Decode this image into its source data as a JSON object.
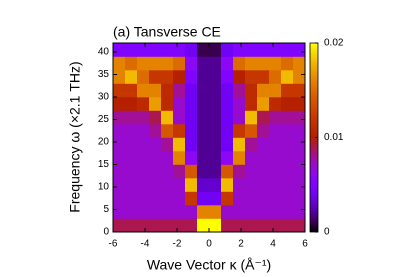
{
  "chart_data": {
    "type": "heatmap",
    "title": "(a)  Tansverse CE",
    "x_label": "Wave Vector κ (Å⁻¹)",
    "y_label": "Frequency ω (×2.1 THz)",
    "xbins": [
      -6,
      -5.25,
      -4.5,
      -3.75,
      -3,
      -2.25,
      -1.5,
      -0.75,
      0,
      0.75,
      1.5,
      2.25,
      3,
      3.75,
      4.5,
      5.25,
      6
    ],
    "ybins": [
      0,
      3,
      6,
      9,
      12,
      15,
      18,
      21,
      24,
      27,
      30,
      33,
      36,
      39,
      42
    ],
    "z": [
      [
        0.009,
        0.009,
        0.009,
        0.009,
        0.009,
        0.009,
        0.009,
        0.02,
        0.02,
        0.009,
        0.009,
        0.009,
        0.009,
        0.009,
        0.009,
        0.009
      ],
      [
        0.007,
        0.007,
        0.007,
        0.007,
        0.007,
        0.007,
        0.007,
        0.016,
        0.016,
        0.007,
        0.007,
        0.007,
        0.007,
        0.007,
        0.007,
        0.007
      ],
      [
        0.007,
        0.007,
        0.007,
        0.007,
        0.007,
        0.007,
        0.012,
        0.004,
        0.004,
        0.012,
        0.007,
        0.007,
        0.007,
        0.007,
        0.007,
        0.007
      ],
      [
        0.007,
        0.007,
        0.007,
        0.007,
        0.007,
        0.007,
        0.018,
        0.003,
        0.003,
        0.018,
        0.007,
        0.007,
        0.007,
        0.007,
        0.007,
        0.007
      ],
      [
        0.007,
        0.007,
        0.007,
        0.007,
        0.007,
        0.008,
        0.014,
        0.002,
        0.002,
        0.014,
        0.008,
        0.007,
        0.007,
        0.007,
        0.007,
        0.007
      ],
      [
        0.007,
        0.007,
        0.007,
        0.007,
        0.007,
        0.016,
        0.006,
        0.002,
        0.002,
        0.006,
        0.016,
        0.007,
        0.007,
        0.007,
        0.007,
        0.007
      ],
      [
        0.007,
        0.007,
        0.007,
        0.007,
        0.008,
        0.018,
        0.004,
        0.002,
        0.002,
        0.004,
        0.018,
        0.008,
        0.007,
        0.007,
        0.007,
        0.007
      ],
      [
        0.007,
        0.007,
        0.007,
        0.008,
        0.014,
        0.012,
        0.004,
        0.002,
        0.002,
        0.004,
        0.012,
        0.014,
        0.008,
        0.007,
        0.007,
        0.007
      ],
      [
        0.008,
        0.008,
        0.008,
        0.009,
        0.018,
        0.007,
        0.004,
        0.002,
        0.002,
        0.004,
        0.007,
        0.018,
        0.009,
        0.008,
        0.008,
        0.008
      ],
      [
        0.01,
        0.01,
        0.011,
        0.017,
        0.011,
        0.007,
        0.004,
        0.002,
        0.002,
        0.004,
        0.007,
        0.011,
        0.017,
        0.011,
        0.01,
        0.01
      ],
      [
        0.012,
        0.012,
        0.016,
        0.016,
        0.011,
        0.008,
        0.004,
        0.002,
        0.002,
        0.004,
        0.008,
        0.011,
        0.016,
        0.016,
        0.012,
        0.012
      ],
      [
        0.016,
        0.018,
        0.015,
        0.012,
        0.012,
        0.01,
        0.005,
        0.002,
        0.002,
        0.005,
        0.01,
        0.012,
        0.012,
        0.015,
        0.018,
        0.016
      ],
      [
        0.016,
        0.015,
        0.016,
        0.016,
        0.016,
        0.015,
        0.006,
        0.002,
        0.002,
        0.006,
        0.015,
        0.016,
        0.016,
        0.016,
        0.015,
        0.016
      ],
      [
        0.005,
        0.005,
        0.005,
        0.005,
        0.005,
        0.005,
        0.004,
        0.001,
        0.001,
        0.004,
        0.005,
        0.005,
        0.005,
        0.005,
        0.005,
        0.005
      ]
    ],
    "xlim": [
      -6,
      6
    ],
    "xticks": [
      -6,
      -4,
      -2,
      0,
      2,
      4,
      6
    ],
    "ylim": [
      0,
      42
    ],
    "yticks": [
      0,
      5,
      10,
      15,
      20,
      25,
      30,
      35,
      40
    ],
    "zlim": [
      0,
      0.02
    ],
    "zticks": [
      0,
      0.01,
      0.02
    ]
  }
}
